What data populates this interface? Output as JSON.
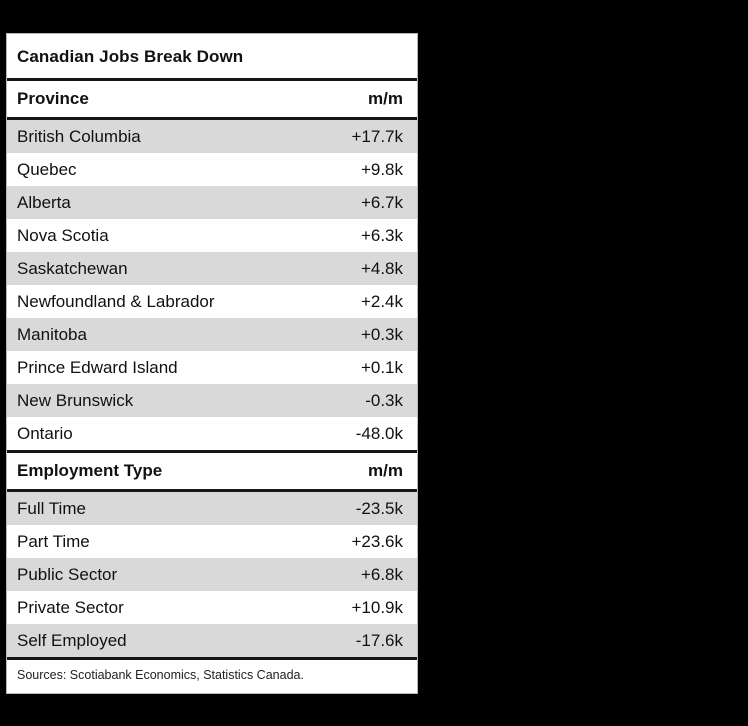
{
  "colors": {
    "page_background": "#000000",
    "card_background": "#ffffff",
    "stripe": "#d9d9d9",
    "rule": "#161616",
    "text": "#111111"
  },
  "chart_data": {
    "type": "table",
    "title": "Canadian Jobs Break Down",
    "sections": [
      {
        "header": {
          "label": "Province",
          "value": "m/m"
        },
        "rows": [
          {
            "label": "British Columbia",
            "value": "+17.7k",
            "value_num": 17.7
          },
          {
            "label": "Quebec",
            "value": "+9.8k",
            "value_num": 9.8
          },
          {
            "label": "Alberta",
            "value": "+6.7k",
            "value_num": 6.7
          },
          {
            "label": "Nova Scotia",
            "value": "+6.3k",
            "value_num": 6.3
          },
          {
            "label": "Saskatchewan",
            "value": "+4.8k",
            "value_num": 4.8
          },
          {
            "label": "Newfoundland & Labrador",
            "value": "+2.4k",
            "value_num": 2.4
          },
          {
            "label": "Manitoba",
            "value": "+0.3k",
            "value_num": 0.3
          },
          {
            "label": "Prince Edward Island",
            "value": "+0.1k",
            "value_num": 0.1
          },
          {
            "label": "New Brunswick",
            "value": "-0.3k",
            "value_num": -0.3
          },
          {
            "label": "Ontario",
            "value": "-48.0k",
            "value_num": -48.0
          }
        ]
      },
      {
        "header": {
          "label": "Employment Type",
          "value": "m/m"
        },
        "rows": [
          {
            "label": "Full Time",
            "value": "-23.5k",
            "value_num": -23.5
          },
          {
            "label": "Part Time",
            "value": "+23.6k",
            "value_num": 23.6
          },
          {
            "label": "Public Sector",
            "value": "+6.8k",
            "value_num": 6.8
          },
          {
            "label": "Private Sector",
            "value": "+10.9k",
            "value_num": 10.9
          },
          {
            "label": "Self Employed",
            "value": "-17.6k",
            "value_num": -17.6
          }
        ]
      }
    ],
    "source": "Sources: Scotiabank Economics, Statistics Canada."
  }
}
